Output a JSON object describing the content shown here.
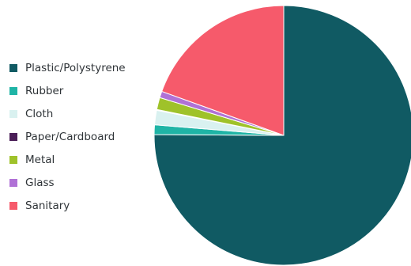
{
  "chart_data": {
    "type": "pie",
    "title": "",
    "legend_position": "left",
    "slices": [
      {
        "label": "Plastic/Polystyrene",
        "value": 75.1,
        "color": "#105a63"
      },
      {
        "label": "Rubber",
        "value": 1.2,
        "color": "#1fb4a6"
      },
      {
        "label": "Cloth",
        "value": 1.8,
        "color": "#d9f1f0"
      },
      {
        "label": "Paper/Cardboard",
        "value": 0.1,
        "color": "#4a1e57"
      },
      {
        "label": "Metal",
        "value": 1.5,
        "color": "#9fc22a"
      },
      {
        "label": "Glass",
        "value": 0.8,
        "color": "#b071d6"
      },
      {
        "label": "Sanitary",
        "value": 19.5,
        "color": "#f65a6b"
      }
    ]
  }
}
